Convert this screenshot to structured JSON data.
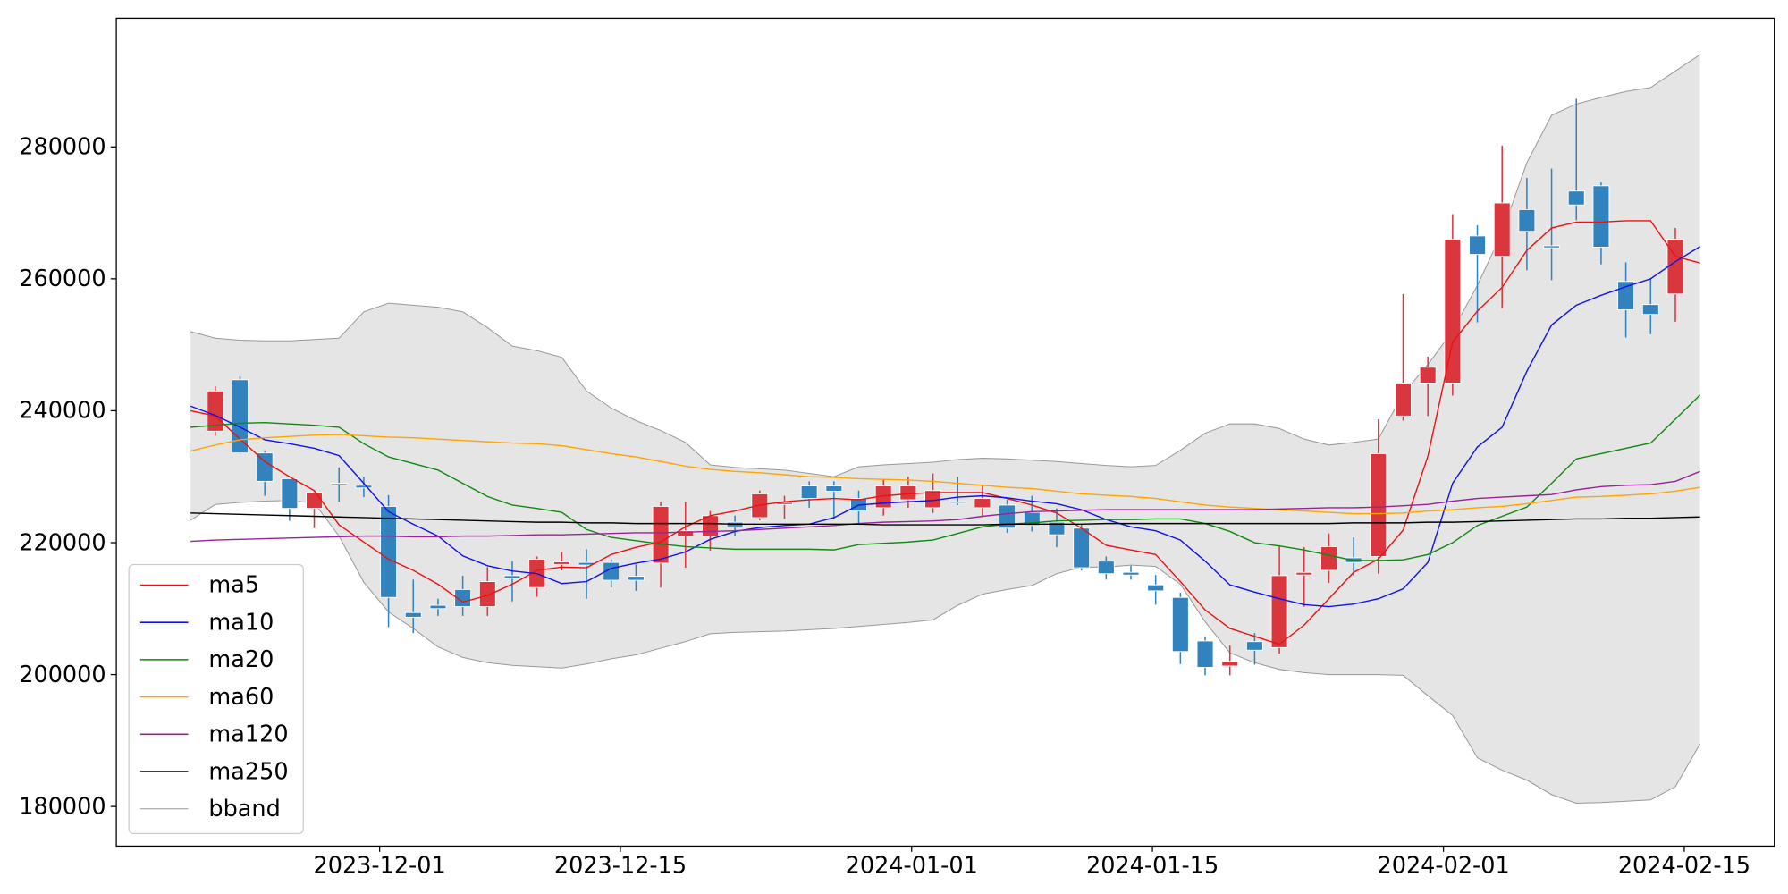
{
  "chart_data": {
    "type": "candlestick",
    "x": [
      0,
      1,
      2,
      3,
      4,
      5,
      6,
      7,
      8,
      9,
      10,
      11,
      12,
      13,
      14,
      15,
      16,
      17,
      18,
      19,
      20,
      21,
      22,
      23,
      24,
      25,
      26,
      27,
      28,
      29,
      30,
      31,
      32,
      33,
      34,
      35,
      36,
      37,
      38,
      39,
      40,
      41,
      42,
      43,
      44,
      45,
      46,
      47,
      48,
      49,
      50,
      51,
      52,
      53,
      54,
      55,
      56,
      57,
      58,
      59,
      60,
      61
    ],
    "open": [
      null,
      236900,
      244700,
      233600,
      229700,
      225200,
      229000,
      228700,
      225500,
      209400,
      210500,
      212900,
      210300,
      215000,
      213200,
      216700,
      217000,
      217000,
      214900,
      216900,
      221000,
      221000,
      223100,
      223800,
      225800,
      228600,
      228600,
      226700,
      225300,
      226500,
      225300,
      226200,
      225300,
      225700,
      224600,
      223100,
      222200,
      217200,
      215500,
      213600,
      211700,
      205100,
      201300,
      205000,
      204100,
      215100,
      215800,
      217700,
      217900,
      239200,
      244200,
      244200,
      266500,
      263400,
      270500,
      265000,
      273300,
      274100,
      259600,
      256100,
      257700,
      null
    ],
    "high": [
      null,
      243700,
      245200,
      234000,
      229700,
      227900,
      231400,
      230000,
      227200,
      214400,
      211500,
      215000,
      216300,
      217200,
      217900,
      218600,
      219000,
      217500,
      216700,
      226200,
      226200,
      224800,
      224100,
      227900,
      227100,
      229300,
      229300,
      227900,
      229700,
      230000,
      230500,
      230000,
      228800,
      226500,
      227100,
      225200,
      222900,
      217900,
      216500,
      215100,
      212400,
      205800,
      204400,
      206300,
      219600,
      219300,
      221400,
      220800,
      238700,
      257700,
      248200,
      269800,
      268100,
      280200,
      275300,
      276700,
      287300,
      274600,
      262500,
      260100,
      267700,
      null
    ],
    "low": [
      null,
      236200,
      233500,
      227100,
      223300,
      222200,
      226200,
      226900,
      207200,
      206300,
      208900,
      208900,
      208900,
      211100,
      211800,
      215800,
      211500,
      213200,
      212700,
      213200,
      216200,
      218800,
      221000,
      223400,
      223600,
      225300,
      223600,
      222800,
      224100,
      225300,
      224500,
      225700,
      223900,
      221500,
      221700,
      219300,
      215800,
      214400,
      214400,
      210600,
      201600,
      199900,
      199900,
      201500,
      203200,
      210300,
      213900,
      215000,
      215300,
      238500,
      239200,
      242300,
      253400,
      255600,
      261300,
      259800,
      268900,
      262200,
      251100,
      251600,
      253500,
      null
    ],
    "close": [
      null,
      243000,
      233600,
      229300,
      225200,
      227600,
      228800,
      228300,
      211700,
      208700,
      210000,
      210300,
      214100,
      214600,
      217500,
      217100,
      216600,
      214300,
      214300,
      225500,
      221800,
      224100,
      222400,
      227400,
      226100,
      226700,
      227800,
      224800,
      228600,
      228600,
      227900,
      226000,
      226700,
      222200,
      222600,
      221200,
      216200,
      215300,
      215100,
      212700,
      203500,
      201100,
      202000,
      203700,
      215000,
      215500,
      219400,
      217000,
      233500,
      244200,
      246600,
      266000,
      263700,
      271500,
      267200,
      264700,
      271200,
      264800,
      255300,
      254600,
      266000,
      null
    ],
    "up_color": "#d9363e",
    "down_color": "#3282bd",
    "series": [
      {
        "name": "ma5",
        "color": "#ee1111",
        "values": [
          240000,
          239200,
          235700,
          232300,
          230000,
          227900,
          222700,
          220100,
          217500,
          215800,
          213700,
          211000,
          212000,
          213700,
          215800,
          216300,
          216200,
          218200,
          219300,
          220100,
          222400,
          224100,
          224800,
          225700,
          226200,
          226500,
          226700,
          226500,
          227100,
          227400,
          227600,
          227600,
          227600,
          226700,
          225700,
          224500,
          222200,
          219600,
          218900,
          218200,
          214100,
          209800,
          207000,
          205800,
          204600,
          207500,
          211500,
          215500,
          217500,
          221900,
          233100,
          250400,
          255100,
          258700,
          264300,
          267700,
          268600,
          268600,
          268800,
          268800,
          263400,
          262400
        ]
      },
      {
        "name": "ma10",
        "color": "#1111ee",
        "values": [
          240700,
          239300,
          237500,
          235600,
          235000,
          234300,
          233200,
          229000,
          224700,
          222800,
          221000,
          218000,
          216500,
          215700,
          215300,
          213800,
          214100,
          216100,
          216900,
          217500,
          218600,
          220500,
          221700,
          222300,
          222600,
          222800,
          223800,
          225700,
          226000,
          226200,
          226400,
          226900,
          227100,
          226800,
          226300,
          225900,
          225000,
          223500,
          222400,
          221800,
          220400,
          217200,
          213600,
          212500,
          211500,
          210600,
          210300,
          210700,
          211500,
          213000,
          217000,
          229000,
          234500,
          237500,
          246000,
          253000,
          256000,
          257500,
          258800,
          260000,
          262600,
          264900
        ]
      },
      {
        "name": "ma20",
        "color": "#118811",
        "values": [
          237500,
          237800,
          238100,
          238200,
          238000,
          237800,
          237500,
          235000,
          233000,
          232000,
          231000,
          229000,
          227000,
          225700,
          225200,
          224600,
          222000,
          220800,
          220300,
          219800,
          219400,
          219200,
          219000,
          219000,
          219000,
          219000,
          218900,
          219700,
          219900,
          220100,
          220400,
          221400,
          222400,
          222800,
          223000,
          223300,
          223400,
          223500,
          223500,
          223600,
          223600,
          222900,
          221700,
          220000,
          219500,
          218900,
          218100,
          217300,
          217300,
          217400,
          218200,
          220000,
          222600,
          224000,
          225400,
          229000,
          232700,
          233500,
          234300,
          235100,
          238700,
          242400
        ]
      },
      {
        "name": "ma60",
        "color": "#ffa500",
        "values": [
          233900,
          234800,
          235600,
          235900,
          236100,
          236300,
          236400,
          236200,
          236000,
          235900,
          235700,
          235500,
          235300,
          235100,
          235000,
          234700,
          234100,
          233500,
          233000,
          232300,
          231600,
          231100,
          230800,
          230600,
          230300,
          230000,
          229900,
          229700,
          229600,
          229500,
          229300,
          229000,
          228700,
          228400,
          228200,
          227800,
          227400,
          227200,
          227000,
          226700,
          226200,
          225700,
          225400,
          225200,
          225000,
          224800,
          224600,
          224400,
          224400,
          224500,
          224800,
          225000,
          225300,
          225500,
          225900,
          226400,
          226900,
          227000,
          227200,
          227400,
          227800,
          228400
        ]
      },
      {
        "name": "ma120",
        "color": "#992299",
        "values": [
          220200,
          220400,
          220500,
          220600,
          220700,
          220800,
          220900,
          221000,
          221000,
          220900,
          220900,
          221000,
          221000,
          221100,
          221200,
          221200,
          221300,
          221400,
          221500,
          221500,
          221600,
          221700,
          221800,
          222000,
          222200,
          222400,
          222600,
          222900,
          223100,
          223200,
          223300,
          223500,
          224000,
          224400,
          224700,
          224800,
          224900,
          225000,
          225000,
          225000,
          225000,
          225000,
          225000,
          225000,
          225100,
          225200,
          225300,
          225300,
          225400,
          225600,
          225800,
          226300,
          226700,
          226900,
          227100,
          227300,
          228000,
          228500,
          228700,
          228800,
          229300,
          230800
        ]
      },
      {
        "name": "ma250",
        "color": "#000000",
        "values": [
          224500,
          224400,
          224300,
          224200,
          224100,
          224000,
          223900,
          223800,
          223700,
          223600,
          223500,
          223400,
          223300,
          223200,
          223100,
          223100,
          223000,
          223000,
          222900,
          222900,
          222900,
          222900,
          222800,
          222800,
          222800,
          222800,
          222800,
          222800,
          222700,
          222700,
          222700,
          222700,
          222700,
          222800,
          222800,
          222800,
          222800,
          222900,
          222900,
          222900,
          222900,
          222900,
          222900,
          222900,
          222900,
          222900,
          222900,
          223000,
          223000,
          223000,
          223100,
          223100,
          223200,
          223300,
          223400,
          223500,
          223600,
          223600,
          223700,
          223700,
          223800,
          223900
        ]
      },
      {
        "name": "bband",
        "color": "#999999",
        "fill": "#e5e5e5",
        "upper": [
          252000,
          251000,
          250700,
          250600,
          250600,
          250800,
          251000,
          255000,
          256300,
          256000,
          255700,
          255000,
          252600,
          249800,
          249100,
          248100,
          243000,
          240400,
          238500,
          237000,
          235200,
          231800,
          231400,
          231200,
          231000,
          230500,
          230000,
          231500,
          231800,
          232000,
          232200,
          232600,
          232800,
          232700,
          232500,
          232300,
          232000,
          231700,
          231500,
          231700,
          234000,
          236600,
          238000,
          238000,
          237300,
          235700,
          234800,
          235200,
          235700,
          242600,
          247000,
          252100,
          259000,
          267000,
          277600,
          284800,
          286500,
          287500,
          288400,
          289000,
          291500,
          294000
        ],
        "lower": [
          223400,
          225800,
          226100,
          226300,
          226400,
          226000,
          221000,
          214000,
          209500,
          207000,
          204200,
          202600,
          201800,
          201400,
          201200,
          201000,
          201600,
          202400,
          203000,
          204000,
          205000,
          206200,
          206400,
          206500,
          206600,
          206800,
          207000,
          207300,
          207600,
          207900,
          208300,
          210500,
          212200,
          212900,
          213500,
          215300,
          216300,
          216300,
          216600,
          216400,
          213700,
          208000,
          203300,
          201800,
          200800,
          200300,
          200000,
          200000,
          200000,
          199900,
          196800,
          193800,
          187400,
          185500,
          184000,
          181800,
          180500,
          180600,
          180800,
          181000,
          183000,
          189500
        ]
      }
    ],
    "xlim": [
      -3,
      64
    ],
    "xticks": [
      {
        "value": 7.64,
        "label": "2023-12-01"
      },
      {
        "value": 17.37,
        "label": "2023-12-15"
      },
      {
        "value": 29.14,
        "label": "2024-01-01"
      },
      {
        "value": 38.87,
        "label": "2024-01-15"
      },
      {
        "value": 50.63,
        "label": "2024-02-01"
      },
      {
        "value": 60.36,
        "label": "2024-02-15"
      }
    ],
    "ylim": [
      174000,
      299500
    ],
    "yticks": [
      180000,
      200000,
      220000,
      240000,
      260000,
      280000
    ],
    "legend": "lower left",
    "grid": false
  }
}
